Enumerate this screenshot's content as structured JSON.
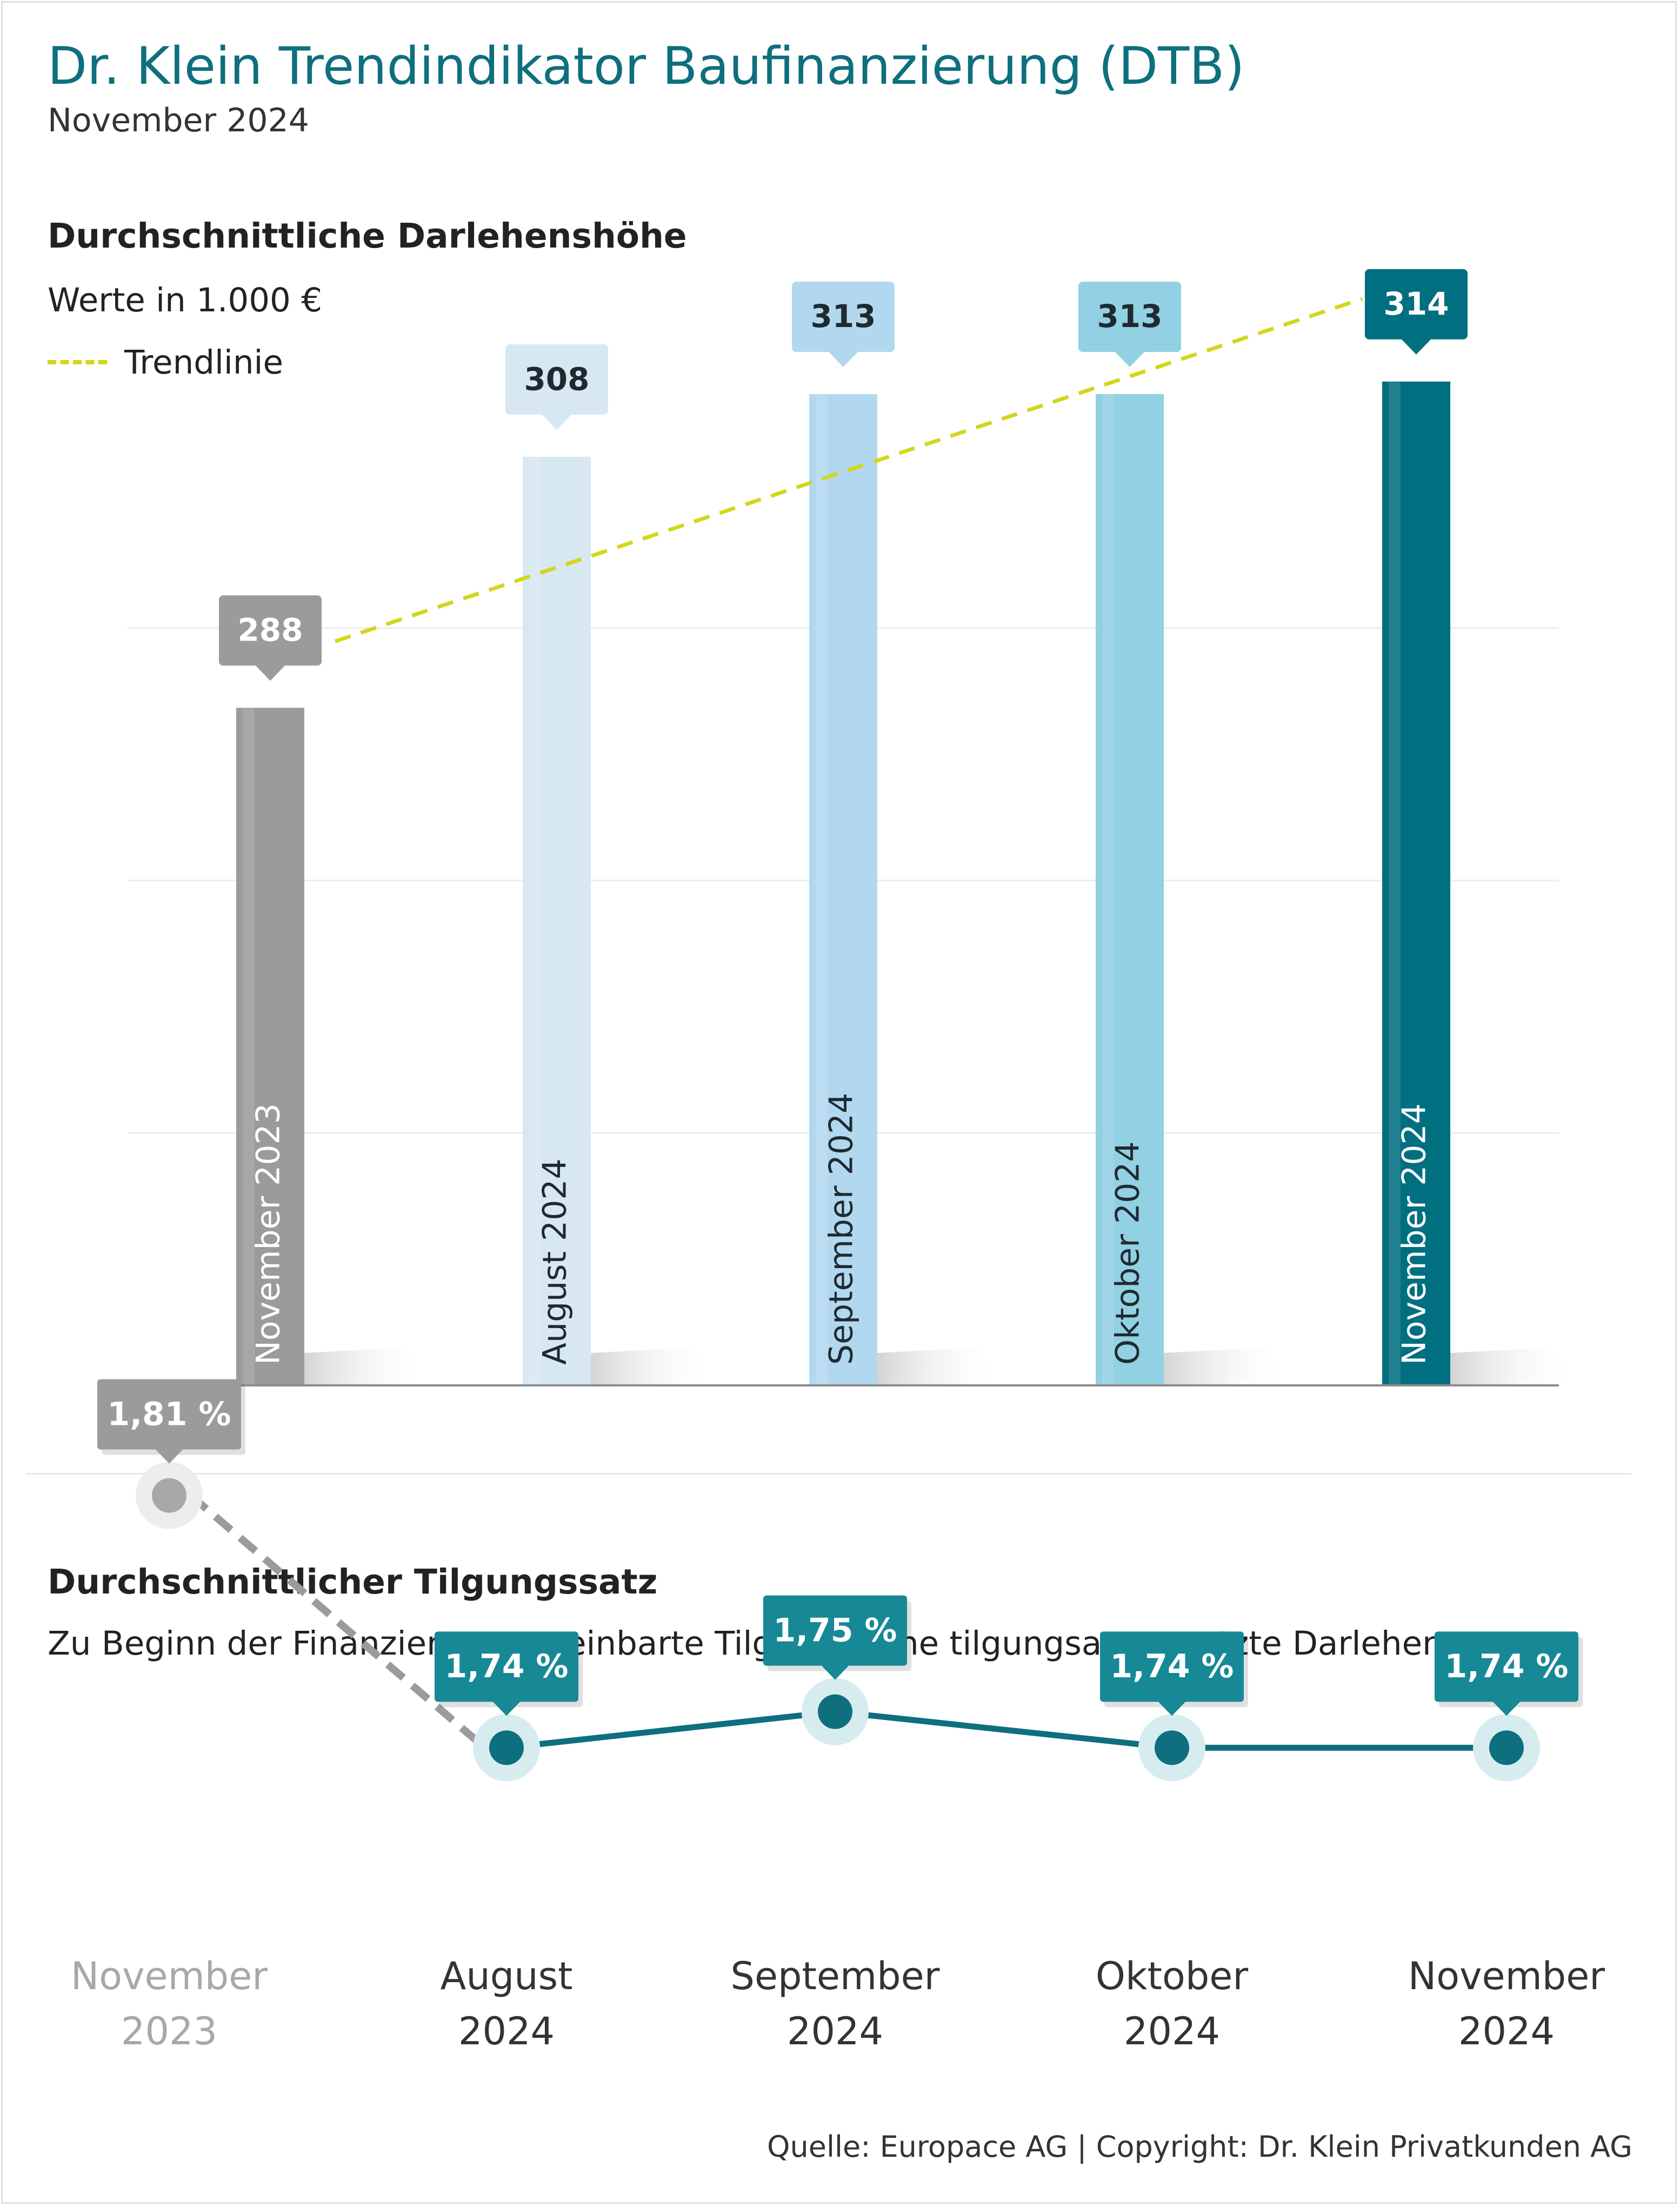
{
  "title": "Dr. Klein Trendindikator Baufinanzierung (DTB)",
  "subtitle": "November 2024",
  "source": "Quelle: Europace AG | Copyright: Dr. Klein Privatkunden AG",
  "colors": {
    "title": "#0e6f7e",
    "grey": "#9b9b9b",
    "light_blue_1": "#d8e8f3",
    "light_blue_2": "#b2d8f0",
    "light_blue_3": "#92d0e3",
    "teal_dark": "#006f80",
    "teal_label": "#168896",
    "trend": "#d3d61c"
  },
  "chart_data": [
    {
      "type": "bar",
      "title": "Durchschnittliche Darlehenshöhe",
      "subtitle": "Werte in 1.000 €",
      "legend_label": "Trendlinie",
      "categories": [
        "November 2023",
        "August 2024",
        "September 2024",
        "Oktober 2024",
        "November 2024"
      ],
      "values": [
        288,
        308,
        313,
        313,
        314
      ],
      "value_labels": [
        "288",
        "308",
        "313",
        "313",
        "314"
      ],
      "bar_colors": [
        "#9b9b9b",
        "#d8e8f3",
        "#b2d8f0",
        "#92d0e3",
        "#006f80"
      ],
      "label_colors": [
        "#9b9b9b",
        "#d8e8f3",
        "#b2d8f0",
        "#92d0e3",
        "#006f80"
      ],
      "trend": {
        "from_category": "November 2023",
        "to_category": "November 2024",
        "from_value": 288,
        "to_value": 314
      },
      "grid": true,
      "ylim": [
        234,
        318
      ]
    },
    {
      "type": "line",
      "title": "Durchschnittlicher Tilgungssatz",
      "subtitle": "Zu Beginn der Finanzierung vereinbarte Tilgung, ohne tilgungsausgesetzte Darlehen",
      "categories": [
        "November 2023",
        "August 2024",
        "September 2024",
        "Oktober 2024",
        "November 2024"
      ],
      "category_lines": [
        [
          "November",
          "2023"
        ],
        [
          "August",
          "2024"
        ],
        [
          "September",
          "2024"
        ],
        [
          "Oktober",
          "2024"
        ],
        [
          "November",
          "2024"
        ]
      ],
      "values": [
        1.81,
        1.74,
        1.75,
        1.74,
        1.74
      ],
      "value_labels": [
        "1,81 %",
        "1,74 %",
        "1,75 %",
        "1,74 %",
        "1,74 %"
      ],
      "ylim": [
        1.7,
        1.85
      ]
    }
  ]
}
